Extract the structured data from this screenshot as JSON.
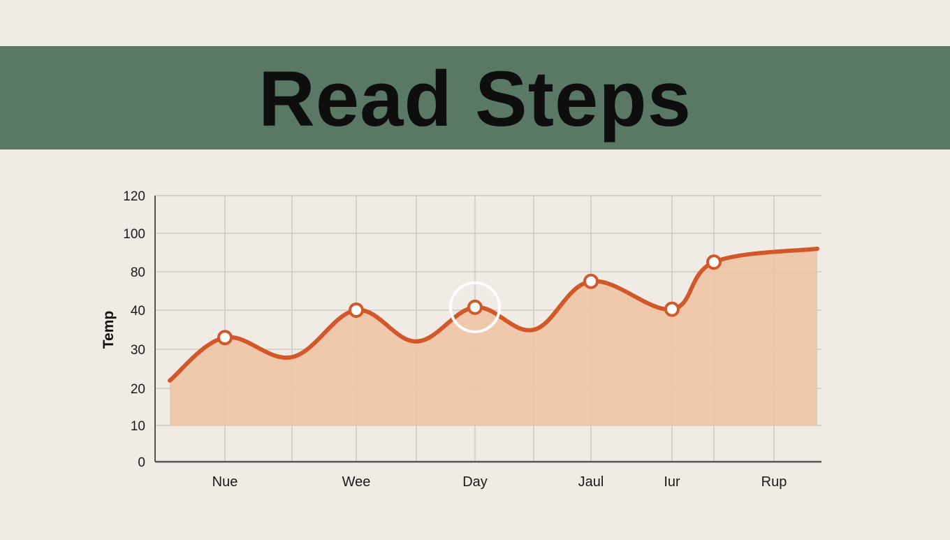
{
  "header": {
    "title": "Read Steps"
  },
  "chart_data": {
    "type": "area",
    "title": "Read Steps",
    "xlabel": "",
    "ylabel": "Temp",
    "y_tick_labels": [
      "0",
      "10",
      "20",
      "30",
      "40",
      "80",
      "100",
      "120"
    ],
    "x_tick_labels": [
      "Nue",
      "Wee",
      "Day",
      "Jaul",
      "Iur",
      "Rup"
    ],
    "series": [
      {
        "values": [
          {
            "x": 0,
            "y": 22
          },
          {
            "x": 1,
            "y": 33
          },
          {
            "x": 2,
            "y": 28
          },
          {
            "x": 3,
            "y": 40
          },
          {
            "x": 4,
            "y": 32
          },
          {
            "x": 5,
            "y": 43
          },
          {
            "x": 6,
            "y": 35
          },
          {
            "x": 7,
            "y": 70
          },
          {
            "x": 8,
            "y": 41
          },
          {
            "x": 9,
            "y": 85
          },
          {
            "x": 10,
            "y": 92
          }
        ],
        "markers": [
          1,
          3,
          5,
          7,
          8,
          9
        ],
        "highlighted_marker": 5
      }
    ],
    "area_baseline": 10,
    "grid": true,
    "colors": {
      "line": "#d2582a",
      "area": "#efc4a4",
      "grid": "#cdcac6",
      "axis": "#555555",
      "highlight_ring": "#ffffff",
      "marker_fill": "#ffffff"
    }
  }
}
